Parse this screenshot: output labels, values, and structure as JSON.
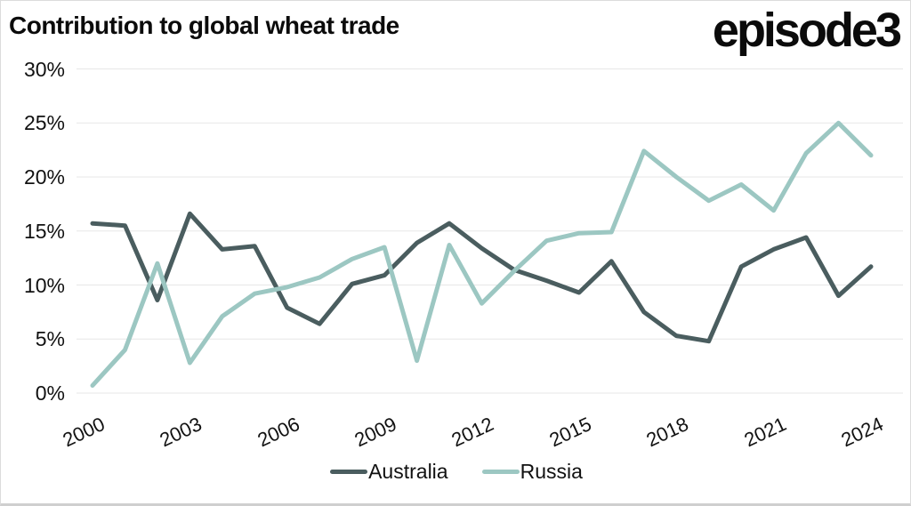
{
  "header": {
    "title": "Contribution to global wheat trade",
    "logo": "episode3"
  },
  "chart_data": {
    "type": "line",
    "title": "Contribution to global wheat trade",
    "x": [
      2000,
      2001,
      2002,
      2003,
      2004,
      2005,
      2006,
      2007,
      2008,
      2009,
      2010,
      2011,
      2012,
      2013,
      2014,
      2015,
      2016,
      2017,
      2018,
      2019,
      2020,
      2021,
      2022,
      2023,
      2024
    ],
    "series": [
      {
        "name": "Australia",
        "color": "#4a5d5f",
        "values": [
          15.7,
          15.5,
          8.6,
          16.6,
          13.3,
          13.6,
          7.9,
          6.4,
          10.1,
          10.9,
          13.9,
          15.7,
          13.4,
          11.4,
          10.4,
          9.3,
          12.2,
          7.5,
          5.3,
          4.8,
          11.7,
          13.3,
          14.4,
          9.0,
          11.7
        ]
      },
      {
        "name": "Russia",
        "color": "#9cc7c2",
        "values": [
          0.7,
          4.0,
          12.0,
          2.8,
          7.1,
          9.2,
          9.8,
          10.7,
          12.4,
          13.5,
          3.0,
          13.7,
          8.3,
          11.3,
          14.1,
          14.8,
          14.9,
          22.4,
          20.0,
          17.8,
          19.3,
          16.9,
          22.2,
          25.0,
          22.0
        ]
      }
    ],
    "ylim": [
      0,
      30
    ],
    "yticks": [
      0,
      5,
      10,
      15,
      20,
      25,
      30
    ],
    "ytick_labels": [
      "0%",
      "5%",
      "10%",
      "15%",
      "20%",
      "25%",
      "30%"
    ],
    "xticks": [
      2000,
      2003,
      2006,
      2009,
      2012,
      2015,
      2018,
      2021,
      2024
    ],
    "xtick_labels": [
      "2000",
      "2003",
      "2006",
      "2009",
      "2012",
      "2015",
      "2018",
      "2021",
      "2024"
    ],
    "grid": "horizontal",
    "gridline_color": "#e7e7e7",
    "legend_position": "bottom-center"
  },
  "legend": {
    "items": [
      {
        "label": "Australia",
        "color": "#4a5d5f"
      },
      {
        "label": "Russia",
        "color": "#9cc7c2"
      }
    ]
  }
}
